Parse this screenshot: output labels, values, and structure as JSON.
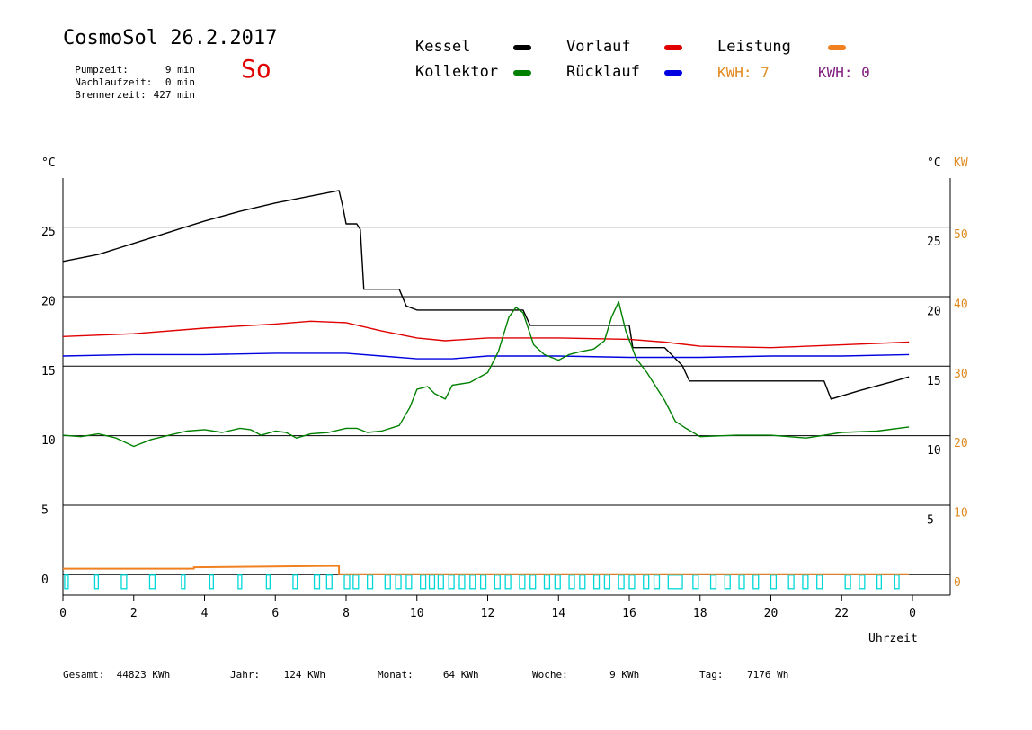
{
  "header": {
    "title": "CosmoSol 26.2.2017",
    "day": "So",
    "stats": [
      {
        "label": "Pumpzeit:",
        "value": "9 min"
      },
      {
        "label": "Nachlaufzeit:",
        "value": "0 min"
      },
      {
        "label": "Brennerzeit:",
        "value": "427 min"
      }
    ]
  },
  "legend": [
    {
      "name": "Kessel",
      "color": "#000000"
    },
    {
      "name": "Vorlauf",
      "color": "#e00000"
    },
    {
      "name": "Leistung",
      "color": "#f08020"
    },
    {
      "name": "Kollektor",
      "color": "#008000"
    },
    {
      "name": "Rücklauf",
      "color": "#0000e0"
    }
  ],
  "kwh": [
    {
      "text": "KWH: 7",
      "color": "#e08a20"
    },
    {
      "text": "KWH: 0",
      "color": "#802080"
    }
  ],
  "footer": [
    {
      "label": "Gesamt:",
      "value": "44823 KWh"
    },
    {
      "label": "Jahr:",
      "value": "124 KWh"
    },
    {
      "label": "Monat:",
      "value": "64 KWh"
    },
    {
      "label": "Woche:",
      "value": "9 KWh"
    },
    {
      "label": "Tag:",
      "value": "7176 Wh"
    }
  ],
  "chart_data": {
    "type": "line",
    "xlabel": "Uhrzeit",
    "ylabel_left": "°C",
    "ylabel_right": "°C",
    "ylabel_right2": "KW",
    "xlim": [
      0,
      24
    ],
    "ylim": [
      -1.5,
      28.5
    ],
    "x_ticks": [
      "0",
      "2",
      "4",
      "6",
      "8",
      "10",
      "12",
      "14",
      "16",
      "18",
      "20",
      "22",
      "0"
    ],
    "y_ticks_left": [
      0,
      5,
      10,
      15,
      20,
      25
    ],
    "y_ticks_right": [
      5,
      10,
      15,
      20,
      25
    ],
    "y_ticks_kw": [
      0,
      10,
      20,
      30,
      40,
      50
    ],
    "grid": true,
    "series": [
      {
        "name": "Kessel",
        "color": "#000000",
        "x": [
          0,
          1,
          2,
          3,
          4,
          5,
          6,
          7,
          7.8,
          7.9,
          8.0,
          8.3,
          8.4,
          8.5,
          9.5,
          9.7,
          10.0,
          13.0,
          13.2,
          16.0,
          16.1,
          17.0,
          17.5,
          17.7,
          21.5,
          21.7,
          22.5,
          23.5,
          23.9
        ],
        "y": [
          22.5,
          23.0,
          23.8,
          24.6,
          25.4,
          26.1,
          26.7,
          27.2,
          27.6,
          26.5,
          25.2,
          25.2,
          24.8,
          20.5,
          20.5,
          19.3,
          19.0,
          19.0,
          17.9,
          17.9,
          16.3,
          16.3,
          15.0,
          13.9,
          13.9,
          12.6,
          13.2,
          13.9,
          14.2
        ]
      },
      {
        "name": "Vorlauf",
        "color": "#e00000",
        "x": [
          0,
          2,
          4,
          6,
          7,
          8,
          9,
          10,
          10.8,
          12,
          14,
          16,
          17,
          18,
          20,
          22,
          23.9
        ],
        "y": [
          17.1,
          17.3,
          17.7,
          18.0,
          18.2,
          18.1,
          17.5,
          17.0,
          16.8,
          17.0,
          17.0,
          16.9,
          16.7,
          16.4,
          16.3,
          16.5,
          16.7
        ]
      },
      {
        "name": "Rücklauf",
        "color": "#0000e0",
        "x": [
          0,
          2,
          4,
          6,
          8,
          9,
          10,
          11,
          12,
          14,
          16,
          18,
          20,
          22,
          23.9
        ],
        "y": [
          15.7,
          15.8,
          15.8,
          15.9,
          15.9,
          15.7,
          15.5,
          15.5,
          15.7,
          15.7,
          15.6,
          15.6,
          15.7,
          15.7,
          15.8
        ]
      },
      {
        "name": "Kollektor",
        "color": "#008000",
        "x": [
          0,
          0.5,
          1.0,
          1.5,
          2.0,
          2.5,
          3.0,
          3.5,
          4.0,
          4.5,
          5.0,
          5.3,
          5.6,
          6.0,
          6.3,
          6.6,
          7.0,
          7.5,
          8.0,
          8.3,
          8.6,
          9.0,
          9.5,
          9.8,
          10.0,
          10.3,
          10.5,
          10.8,
          11.0,
          11.5,
          12.0,
          12.3,
          12.6,
          12.8,
          13.0,
          13.3,
          13.6,
          14.0,
          14.3,
          14.6,
          15.0,
          15.3,
          15.5,
          15.7,
          15.9,
          16.2,
          16.5,
          16.8,
          17.0,
          17.3,
          17.6,
          18.0,
          19.0,
          20.0,
          21.0,
          22.0,
          23.0,
          23.9
        ],
        "y": [
          10.0,
          9.9,
          10.1,
          9.8,
          9.2,
          9.7,
          10.0,
          10.3,
          10.4,
          10.2,
          10.5,
          10.4,
          10.0,
          10.3,
          10.2,
          9.8,
          10.1,
          10.2,
          10.5,
          10.5,
          10.2,
          10.3,
          10.7,
          12.0,
          13.3,
          13.5,
          13.0,
          12.6,
          13.6,
          13.8,
          14.5,
          16.0,
          18.5,
          19.2,
          18.8,
          16.5,
          15.8,
          15.4,
          15.8,
          16.0,
          16.2,
          16.8,
          18.5,
          19.6,
          17.5,
          15.5,
          14.5,
          13.3,
          12.5,
          11.0,
          10.5,
          9.9,
          10.0,
          10.0,
          9.8,
          10.2,
          10.3,
          10.6
        ]
      },
      {
        "name": "Leistung",
        "color": "#f08020",
        "x": [
          0,
          3.7,
          3.7,
          7.8,
          7.8,
          23.9
        ],
        "y": [
          0.4,
          0.4,
          0.5,
          0.6,
          0.0,
          0.0
        ]
      }
    ],
    "pump_pulses": {
      "color": "#00d8d8",
      "x_start": [
        0.05,
        0.9,
        1.65,
        2.45,
        3.35,
        4.15,
        4.95,
        5.75,
        6.5,
        7.1,
        7.45,
        7.95,
        8.2,
        8.6,
        9.1,
        9.4,
        9.7,
        10.1,
        10.35,
        10.6,
        10.9,
        11.2,
        11.5,
        11.8,
        12.2,
        12.5,
        12.9,
        13.2,
        13.6,
        13.9,
        14.3,
        14.6,
        15.0,
        15.3,
        15.7,
        16.0,
        16.4,
        16.7,
        17.1,
        17.8,
        18.3,
        18.7,
        19.1,
        19.5,
        20.0,
        20.5,
        20.9,
        21.3,
        22.1,
        22.5,
        23.0,
        23.5
      ],
      "width": [
        0.1,
        0.1,
        0.15,
        0.15,
        0.1,
        0.1,
        0.1,
        0.1,
        0.12,
        0.15,
        0.15,
        0.15,
        0.15,
        0.15,
        0.15,
        0.15,
        0.15,
        0.15,
        0.15,
        0.15,
        0.15,
        0.15,
        0.15,
        0.15,
        0.15,
        0.15,
        0.15,
        0.15,
        0.15,
        0.15,
        0.15,
        0.15,
        0.15,
        0.15,
        0.15,
        0.15,
        0.15,
        0.15,
        0.4,
        0.15,
        0.15,
        0.15,
        0.15,
        0.15,
        0.15,
        0.15,
        0.15,
        0.15,
        0.15,
        0.15,
        0.12,
        0.12
      ]
    }
  }
}
